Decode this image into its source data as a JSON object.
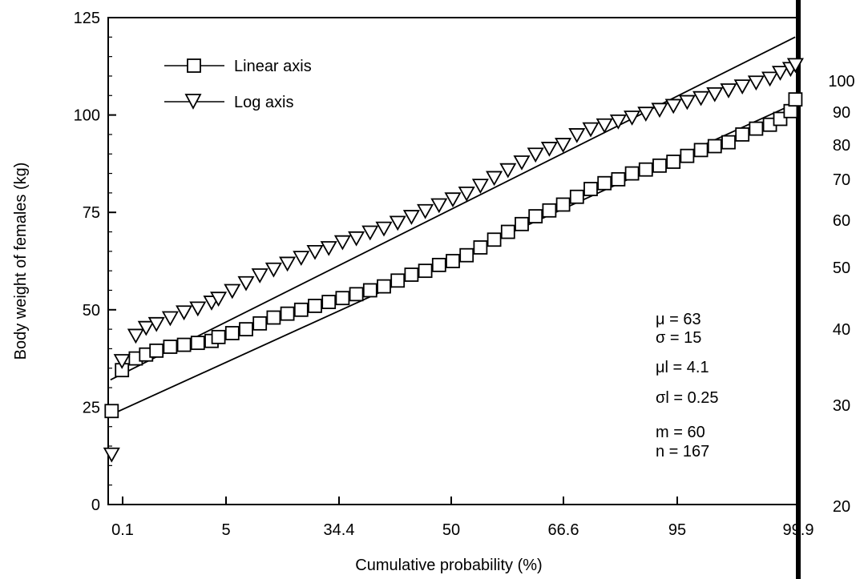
{
  "chart_data": {
    "type": "scatter",
    "xlabel": "Cumulative probability (%)",
    "ylabel": "Body weight of females (kg)",
    "y_ticks": [
      0,
      25,
      50,
      75,
      100,
      125
    ],
    "ylim": [
      0,
      125
    ],
    "x_tick_labels": [
      "0.1",
      "5",
      "34.4",
      "50",
      "66.6",
      "95",
      "99.9"
    ],
    "x_axis_scale": "normal probability",
    "right_axis": {
      "scale": "log",
      "tick_labels": [
        "20",
        "30",
        "40",
        "50",
        "60",
        "70",
        "80",
        "90",
        "100"
      ]
    },
    "legend": {
      "placement": "top-left",
      "entries": [
        {
          "label": "Linear axis",
          "marker": "square"
        },
        {
          "label": "Log axis",
          "marker": "triangle-down"
        }
      ]
    },
    "stats": [
      "μ = 63",
      "σ = 15",
      "μl = 4.1",
      "σl = 0.25",
      "m = 60",
      "n = 167"
    ],
    "series": [
      {
        "marker": "square",
        "fit_line": {
          "start": [
            0.33,
            23
          ],
          "end": [
            99.67,
            103
          ]
        },
        "x_percent": [
          0.5,
          2,
          4,
          5.5,
          7,
          9,
          11,
          13,
          15,
          16,
          18,
          20,
          22,
          24,
          26,
          28,
          30,
          32,
          34,
          36,
          38,
          40,
          42,
          44,
          46,
          48,
          50,
          52,
          54,
          56,
          58,
          60,
          62,
          64,
          66,
          68,
          70,
          72,
          74,
          76,
          78,
          80,
          82,
          84,
          86,
          88,
          90,
          92,
          94,
          96,
          97.5,
          99,
          99.7
        ],
        "y": [
          24,
          34.5,
          37.5,
          38.5,
          39.5,
          40.5,
          41,
          41.5,
          42,
          43,
          44,
          45,
          46.5,
          48,
          49,
          50,
          51,
          52,
          53,
          54,
          55,
          56,
          57.5,
          59,
          60,
          61.5,
          62.5,
          64,
          66,
          68,
          70,
          72,
          74,
          75.5,
          77,
          79,
          81,
          82.5,
          83.5,
          85,
          86,
          87,
          88,
          89.5,
          91,
          92,
          93,
          95,
          96.5,
          97.5,
          99,
          101,
          104
        ]
      },
      {
        "marker": "triangle-down",
        "fit_line": {
          "start": [
            0.33,
            32
          ],
          "end": [
            99.67,
            120
          ]
        },
        "x_percent": [
          0.5,
          2,
          4,
          5.5,
          7,
          9,
          11,
          13,
          15,
          16,
          18,
          20,
          22,
          24,
          26,
          28,
          30,
          32,
          34,
          36,
          38,
          40,
          42,
          44,
          46,
          48,
          50,
          52,
          54,
          56,
          58,
          60,
          62,
          64,
          66,
          68,
          70,
          72,
          74,
          76,
          78,
          80,
          82,
          84,
          86,
          88,
          90,
          92,
          94,
          96,
          97.5,
          99,
          99.7
        ],
        "y": [
          13,
          37,
          43.5,
          45.5,
          46.5,
          48,
          49.5,
          50.5,
          52,
          53,
          55,
          57,
          59,
          60.5,
          62,
          63.5,
          65,
          66,
          67.5,
          68.5,
          70,
          71,
          72.5,
          74,
          75.5,
          77,
          78.5,
          80,
          82,
          84,
          86,
          88,
          90,
          91.5,
          92.5,
          95,
          96.5,
          97.5,
          98.5,
          99.5,
          100.5,
          101.5,
          102.5,
          103.5,
          104.5,
          105.5,
          106.5,
          107.5,
          108.5,
          109.5,
          111,
          112,
          113
        ]
      }
    ]
  }
}
